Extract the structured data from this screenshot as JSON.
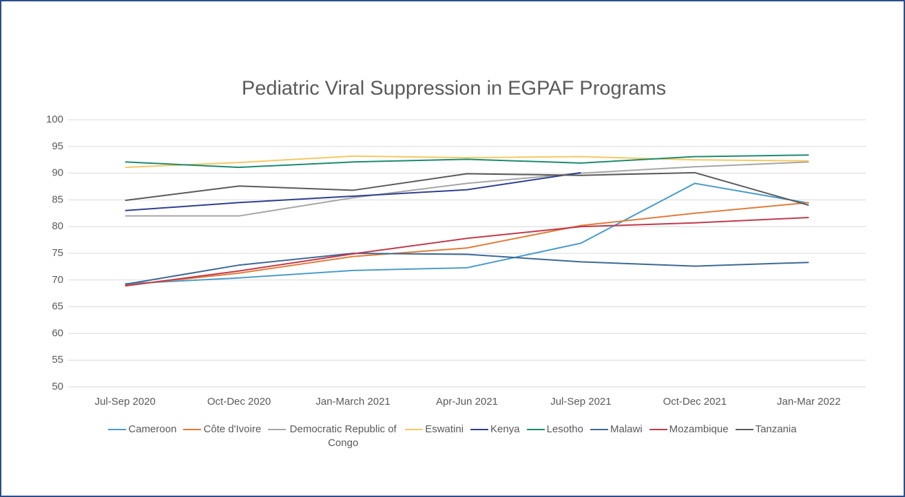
{
  "chart_data": {
    "type": "line",
    "title": "Pediatric Viral Suppression in EGPAF Programs",
    "categories": [
      "Jul-Sep 2020",
      "Oct-Dec 2020",
      "Jan-March 2021",
      "Apr-Jun 2021",
      "Jul-Sep 2021",
      "Oct-Dec 2021",
      "Jan-Mar 2022"
    ],
    "series": [
      {
        "name": "Cameroon",
        "color": "#4a9cc9",
        "values": [
          69.3,
          70.4,
          71.8,
          72.3,
          76.9,
          88.1,
          84.4
        ]
      },
      {
        "name": "Côte d'Ivoire",
        "color": "#e07b39",
        "values": [
          69.0,
          71.3,
          74.4,
          76.0,
          80.2,
          82.5,
          84.5
        ]
      },
      {
        "name": "Democratic Republic of Congo",
        "color": "#a5a5a5",
        "values": [
          82.0,
          82.0,
          85.4,
          88.1,
          90.0,
          91.2,
          92.1
        ]
      },
      {
        "name": "Eswatini",
        "color": "#f6c85f",
        "values": [
          91.1,
          92.0,
          93.2,
          92.9,
          93.1,
          92.5,
          92.3
        ]
      },
      {
        "name": "Kenya",
        "color": "#2e3f8f",
        "values": [
          83.0,
          84.5,
          85.7,
          86.9,
          90.1,
          null,
          null
        ]
      },
      {
        "name": "Lesotho",
        "color": "#1a8a6e",
        "values": [
          92.1,
          91.1,
          92.1,
          92.6,
          91.9,
          93.1,
          93.4
        ]
      },
      {
        "name": "Malawi",
        "color": "#3b6894",
        "values": [
          69.2,
          72.8,
          75.0,
          74.8,
          73.4,
          72.6,
          73.3
        ]
      },
      {
        "name": "Mozambique",
        "color": "#c0394b",
        "values": [
          68.9,
          71.7,
          74.9,
          77.8,
          80.0,
          80.7,
          81.7
        ]
      },
      {
        "name": "Tanzania",
        "color": "#595959",
        "values": [
          84.9,
          87.6,
          86.8,
          89.9,
          89.6,
          90.1,
          84.0
        ]
      }
    ],
    "ylim": [
      50,
      100
    ],
    "yticks": [
      50,
      55,
      60,
      65,
      70,
      75,
      80,
      85,
      90,
      95,
      100
    ],
    "grid": true,
    "legend": "bottom"
  }
}
